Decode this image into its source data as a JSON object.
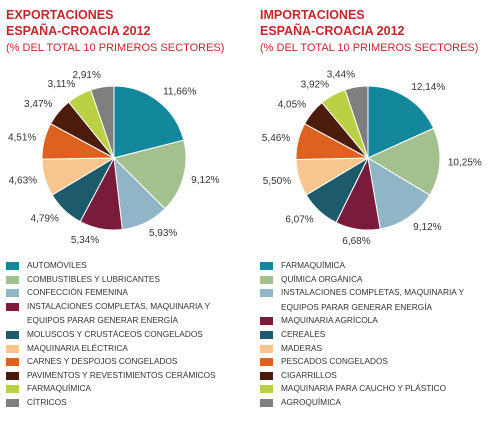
{
  "chart_data": [
    {
      "type": "pie",
      "title": "EXPORTACIONES",
      "subtitle": "ESPAÑA-CROACIA 2012",
      "note": "(% DEL TOTAL 10 PRIMEROS SECTORES)",
      "categories": [
        "AUTOMÓVILES",
        "COMBUSTIBLES Y LUBRICANTES",
        "CONFECCIÓN FEMENINA",
        "INSTALACIONES COMPLETAS, MAQUINARIA Y EQUIPOS PARAR GENERAR ENERGÍA",
        "MOLUSCOS Y CRUSTÁCEOS CONGELADOS",
        "MAQUINARIA ELÉCTRICA",
        "CARNES Y DESPOJOS CONGELADOS",
        "PAVIMENTOS Y REVESTIMIENTOS CERÁMICOS",
        "FARMAQUÍMICA",
        "CÍTRICOS"
      ],
      "values": [
        11.66,
        9.12,
        5.93,
        5.34,
        4.79,
        4.63,
        4.51,
        3.47,
        3.11,
        2.91
      ],
      "value_labels": [
        "11,66%",
        "9,12%",
        "5,93%",
        "5,34%",
        "4,79%",
        "4,63%",
        "4,51%",
        "3,47%",
        "3,11%",
        "2,91%"
      ],
      "colors": [
        "#13889c",
        "#a3c08f",
        "#8fb5c6",
        "#7a1b3c",
        "#1c5a6c",
        "#f9c58e",
        "#de6120",
        "#4b1c0c",
        "#bbd043",
        "#7f7f7f"
      ]
    },
    {
      "type": "pie",
      "title": "IMPORTACIONES",
      "subtitle": "ESPAÑA-CROACIA 2012",
      "note": "(% DEL TOTAL 10 PRIMEROS SECTORES)",
      "categories": [
        "FARMAQUÍMICA",
        "QUÍMICA ORGÁNICA",
        "INSTALACIONES COMPLETAS, MAQUINARIA Y EQUIPOS PARAR GENERAR ENERGÍA",
        "MAQUINARIA AGRÍCOLA",
        "CEREALES",
        "MADERAS",
        "PESCADOS CONGELADOS",
        "CIGARRILLOS",
        "MAQUINARIA PARA CAUCHO Y PLÁSTICO",
        "AGROQUÍMICA"
      ],
      "values": [
        12.14,
        10.25,
        9.12,
        6.68,
        6.07,
        5.5,
        5.46,
        4.05,
        3.92,
        3.44
      ],
      "value_labels": [
        "12,14%",
        "10,25%",
        "9,12%",
        "6,68%",
        "6,07%",
        "5,50%",
        "5,46%",
        "4,05%",
        "3,92%",
        "3,44%"
      ],
      "colors": [
        "#13889c",
        "#a3c08f",
        "#8fb5c6",
        "#7a1b3c",
        "#1c5a6c",
        "#f9c58e",
        "#de6120",
        "#4b1c0c",
        "#bbd043",
        "#7f7f7f"
      ]
    }
  ]
}
